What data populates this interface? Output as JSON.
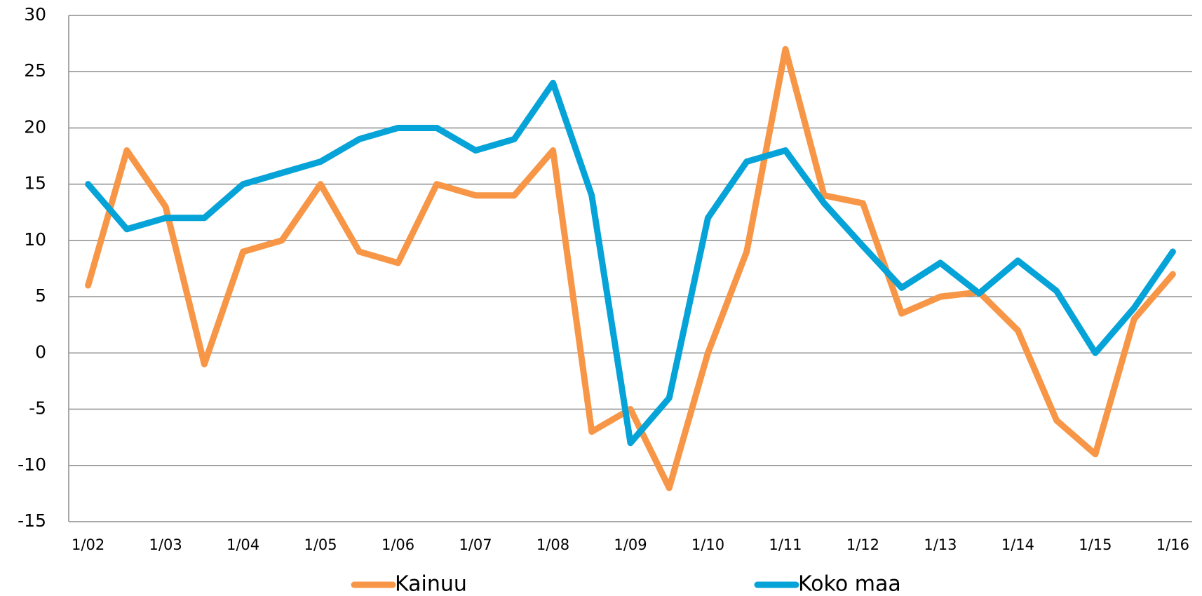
{
  "chart_data": {
    "type": "line",
    "categories": [
      "1/02",
      null,
      "1/03",
      null,
      "1/04",
      null,
      "1/05",
      null,
      "1/06",
      null,
      "1/07",
      null,
      "1/08",
      null,
      "1/09",
      null,
      "1/10",
      null,
      "1/11",
      null,
      "1/12",
      null,
      "1/13",
      null,
      "1/14",
      null,
      "1/15",
      null,
      "1/16"
    ],
    "series": [
      {
        "name": "Kainuu",
        "color": "#f79646",
        "values": [
          6,
          18,
          13,
          -1,
          9,
          10,
          15,
          9,
          8,
          15,
          14,
          14,
          18,
          -7,
          -5,
          -12,
          0,
          9,
          27,
          14,
          13.3,
          3.5,
          5,
          5.4,
          2,
          -6,
          -9,
          3,
          7
        ]
      },
      {
        "name": "Koko maa",
        "color": "#05a3d7",
        "values": [
          15,
          11,
          12,
          12,
          15,
          16,
          17,
          19,
          20,
          20,
          18,
          19,
          24,
          14,
          -8,
          -4,
          12,
          17,
          18,
          13.3,
          9.5,
          5.8,
          8,
          5.3,
          8.2,
          5.5,
          0,
          4,
          9
        ]
      }
    ],
    "ylim": [
      -15,
      30
    ],
    "yticks": [
      -15,
      -10,
      -5,
      0,
      5,
      10,
      15,
      20,
      25,
      30
    ],
    "grid": true,
    "legend": "bottom"
  }
}
